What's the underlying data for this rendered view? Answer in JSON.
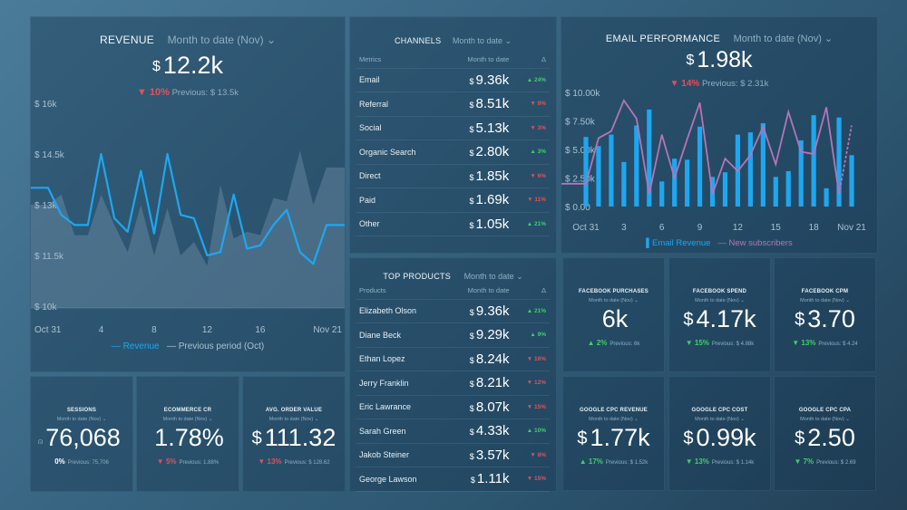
{
  "revenue": {
    "title": "REVENUE",
    "period": "Month to date (Nov) ⌄",
    "currency": "$",
    "value": "12.2k",
    "change": "▼ 10%",
    "previous": "Previous: $ 13.5k",
    "legend_current": "Revenue",
    "legend_previous": "Previous period (Oct)"
  },
  "email": {
    "title": "EMAIL PERFORMANCE",
    "period": "Month to date (Nov) ⌄",
    "currency": "$",
    "value": "1.98k",
    "change": "▼ 14%",
    "previous": "Previous: $ 2.31k",
    "legend_bars": "Email Revenue",
    "legend_line": "New subscribers"
  },
  "channels": {
    "title": "CHANNELS",
    "period": "Month to date ⌄",
    "headers": [
      "Metrics",
      "Month to date",
      "Δ"
    ],
    "rows": [
      {
        "name": "Email",
        "value": "9.36k",
        "delta": "▲ 24%",
        "dir": "up"
      },
      {
        "name": "Referral",
        "value": "8.51k",
        "delta": "▼ 9%",
        "dir": "dn"
      },
      {
        "name": "Social",
        "value": "5.13k",
        "delta": "▼ 3%",
        "dir": "dn"
      },
      {
        "name": "Organic Search",
        "value": "2.80k",
        "delta": "▲ 3%",
        "dir": "up"
      },
      {
        "name": "Direct",
        "value": "1.85k",
        "delta": "▼ 6%",
        "dir": "dn"
      },
      {
        "name": "Paid",
        "value": "1.69k",
        "delta": "▼ 11%",
        "dir": "dn"
      },
      {
        "name": "Other",
        "value": "1.05k",
        "delta": "▲ 21%",
        "dir": "up"
      }
    ]
  },
  "products": {
    "title": "TOP PRODUCTS",
    "period": "Month to date ⌄",
    "headers": [
      "Products",
      "Month to date",
      "Δ"
    ],
    "rows": [
      {
        "name": "Elizabeth Olson",
        "value": "9.36k",
        "delta": "▲ 21%",
        "dir": "up"
      },
      {
        "name": "Diane Beck",
        "value": "9.29k",
        "delta": "▲ 9%",
        "dir": "up"
      },
      {
        "name": "Ethan Lopez",
        "value": "8.24k",
        "delta": "▼ 16%",
        "dir": "dn"
      },
      {
        "name": "Jerry Franklin",
        "value": "8.21k",
        "delta": "▼ 12%",
        "dir": "dn"
      },
      {
        "name": "Eric Lawrance",
        "value": "8.07k",
        "delta": "▼ 15%",
        "dir": "dn"
      },
      {
        "name": "Sarah Green",
        "value": "4.33k",
        "delta": "▲ 10%",
        "dir": "up"
      },
      {
        "name": "Jakob Steiner",
        "value": "3.57k",
        "delta": "▼ 8%",
        "dir": "dn"
      },
      {
        "name": "George Lawson",
        "value": "1.11k",
        "delta": "▼ 15%",
        "dir": "dn"
      }
    ]
  },
  "currency_symbol": "$",
  "kpis": [
    {
      "title": "SESSIONS",
      "period": "Month to date (Nov) ⌄",
      "cur": "",
      "value": "76,068",
      "change": "0%",
      "previous": "Previous: 75,706",
      "dir": "flat"
    },
    {
      "title": "ECOMMERCE CR",
      "period": "Month to date (Nov) ⌄",
      "cur": "",
      "value": "1.78%",
      "change": "▼ 5%",
      "previous": "Previous: 1.88%",
      "dir": "dn"
    },
    {
      "title": "AVG. ORDER VALUE",
      "period": "Month to date (Nov) ⌄",
      "cur": "$",
      "value": "111.32",
      "change": "▼ 13%",
      "previous": "Previous: $ 128.62",
      "dir": "dn"
    },
    {
      "title": "FACEBOOK PURCHASES",
      "period": "Month to date (Nov) ⌄",
      "cur": "",
      "value": "6k",
      "change": "▲ 2%",
      "previous": "Previous: 6k",
      "dir": "up"
    },
    {
      "title": "FACEBOOK SPEND",
      "period": "Month to date (Nov) ⌄",
      "cur": "$",
      "value": "4.17k",
      "change": "▼ 15%",
      "previous": "Previous: $ 4.88k",
      "dir": "gd"
    },
    {
      "title": "FACEBOOK CPM",
      "period": "Month to date (Nov) ⌄",
      "cur": "$",
      "value": "3.70",
      "change": "▼ 13%",
      "previous": "Previous: $ 4.24",
      "dir": "gd"
    },
    {
      "title": "GOOGLE CPC REVENUE",
      "period": "Month to date (Nov) ⌄",
      "cur": "$",
      "value": "1.77k",
      "change": "▲ 17%",
      "previous": "Previous: $ 1.52k",
      "dir": "up"
    },
    {
      "title": "GOOGLE CPC COST",
      "period": "Month to date (Nov) ⌄",
      "cur": "$",
      "value": "0.99k",
      "change": "▼ 13%",
      "previous": "Previous: $ 1.14k",
      "dir": "gd"
    },
    {
      "title": "GOOGLE CPC CPA",
      "period": "Month to date (Nov) ⌄",
      "cur": "$",
      "value": "2.50",
      "change": "▼ 7%",
      "previous": "Previous: $ 2.69",
      "dir": "gd"
    }
  ],
  "colors": {
    "revenue_line": "#1ea7f0",
    "bar": "#1ea7f0",
    "subscribers_line": "#b574b8",
    "previous_area": "#8aa9bb",
    "down": "#e4505a",
    "up": "#3fcf6a"
  },
  "chart_data": [
    {
      "type": "line",
      "title": "REVENUE",
      "ylim": [
        10,
        16
      ],
      "yticks": [
        "$ 10k",
        "$ 11.5k",
        "$ 13k",
        "$ 14.5k",
        "$ 16k"
      ],
      "ytick_values": [
        10,
        11.5,
        13,
        14.5,
        16
      ],
      "xticks": [
        {
          "i": 0,
          "label": "Oct 31"
        },
        {
          "i": 4,
          "label": "4"
        },
        {
          "i": 8,
          "label": "8"
        },
        {
          "i": 12,
          "label": "12"
        },
        {
          "i": 16,
          "label": "16"
        },
        {
          "i": 21,
          "label": "Nov 21"
        }
      ],
      "series": [
        {
          "name": "Revenue",
          "unit": "k$",
          "values": [
            13.5,
            12.7,
            12.4,
            12.4,
            14.5,
            12.6,
            12.2,
            14.0,
            12.15,
            14.5,
            12.7,
            12.6,
            11.5,
            11.6,
            13.3,
            11.7,
            11.8,
            12.4,
            12.85,
            11.6,
            11.25,
            12.4
          ]
        },
        {
          "name": "Previous period (Oct)",
          "unit": "k$",
          "values": [
            13.0,
            13.3,
            12.1,
            12.1,
            13.3,
            12.4,
            11.6,
            13.0,
            11.5,
            12.9,
            11.5,
            11.9,
            11.2,
            13.6,
            12.0,
            12.2,
            12.1,
            13.2,
            13.1,
            14.6,
            13.0,
            14.1
          ]
        }
      ]
    },
    {
      "type": "bar",
      "title": "EMAIL PERFORMANCE",
      "ylim": [
        0,
        10
      ],
      "yticks": [
        "$ 0.00",
        "$ 2.50k",
        "$ 5.00k",
        "$ 7.50k",
        "$ 10.00k"
      ],
      "ytick_values": [
        0,
        2.5,
        5,
        7.5,
        10
      ],
      "xticks": [
        {
          "i": 0,
          "label": "Oct 31"
        },
        {
          "i": 3,
          "label": "3"
        },
        {
          "i": 6,
          "label": "6"
        },
        {
          "i": 9,
          "label": "9"
        },
        {
          "i": 12,
          "label": "12"
        },
        {
          "i": 15,
          "label": "15"
        },
        {
          "i": 18,
          "label": "18"
        },
        {
          "i": 21,
          "label": "Nov 21"
        }
      ],
      "series": [
        {
          "name": "Email Revenue",
          "unit": "k$",
          "values": [
            6.1,
            5.3,
            6.3,
            3.9,
            7.1,
            8.5,
            2.2,
            4.2,
            4.1,
            7.0,
            2.6,
            3.0,
            6.3,
            6.5,
            7.3,
            2.6,
            3.1,
            5.8,
            8.0,
            1.6,
            7.8,
            4.5
          ]
        },
        {
          "name": "New subscribers",
          "unit": "relative",
          "values": [
            2.0,
            6.0,
            6.6,
            9.3,
            7.7,
            1.1,
            6.3,
            2.5,
            5.9,
            9.1,
            1.1,
            4.2,
            3.1,
            4.5,
            7.0,
            3.7,
            8.3,
            4.8,
            4.6,
            8.7,
            1.1,
            7.1
          ]
        }
      ]
    }
  ]
}
